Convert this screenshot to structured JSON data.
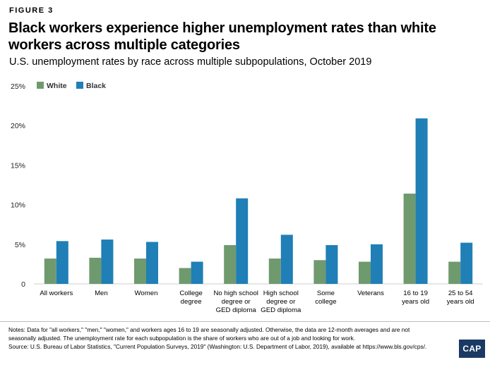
{
  "header": {
    "figure_label": "FIGURE 3",
    "title": "Black workers experience higher unemployment rates than white workers across multiple categories",
    "subtitle": "U.S. unemployment rates by race across multiple subpopulations, October 2019"
  },
  "chart_data": {
    "type": "bar",
    "title": "Black workers experience higher unemployment rates than white workers across multiple categories",
    "subtitle": "U.S. unemployment rates by race across multiple subpopulations, October 2019",
    "categories": [
      [
        "All workers"
      ],
      [
        "Men"
      ],
      [
        "Women"
      ],
      [
        "College",
        "degree"
      ],
      [
        "No high school",
        "degree or",
        "GED diploma"
      ],
      [
        "High school",
        "degree or",
        "GED diploma"
      ],
      [
        "Some",
        "college"
      ],
      [
        "Veterans"
      ],
      [
        "16 to 19",
        "years old"
      ],
      [
        "25 to 54",
        "years old"
      ]
    ],
    "series": [
      {
        "name": "White",
        "color": "#6f9a6e",
        "values": [
          3.2,
          3.3,
          3.2,
          2.0,
          4.9,
          3.2,
          3.0,
          2.8,
          11.4,
          2.8
        ]
      },
      {
        "name": "Black",
        "color": "#1f7fb6",
        "values": [
          5.4,
          5.6,
          5.3,
          2.8,
          10.8,
          6.2,
          4.9,
          5.0,
          20.9,
          5.2
        ]
      }
    ],
    "y_ticks": [
      "0",
      "5%",
      "10%",
      "15%",
      "20%",
      "25%"
    ],
    "ylim": [
      0,
      25
    ],
    "legend_position": "top-left",
    "grid": false
  },
  "footer": {
    "notes": "Notes: Data for \"all workers,\" \"men,\" \"women,\" and workers ages 16 to 19 are seasonally adjusted. Otherwise, the data are 12-month averages and are not seasonally adjusted. The unemployment rate for each subpopulation is the share of workers who are out of a job and looking for work.",
    "source": "Source: U.S. Bureau of Labor Statistics, \"Current Population Surveys, 2019\" (Washington: U.S. Department of Labor, 2019), available at https://www.bls.gov/cps/.",
    "logo": "CAP"
  }
}
